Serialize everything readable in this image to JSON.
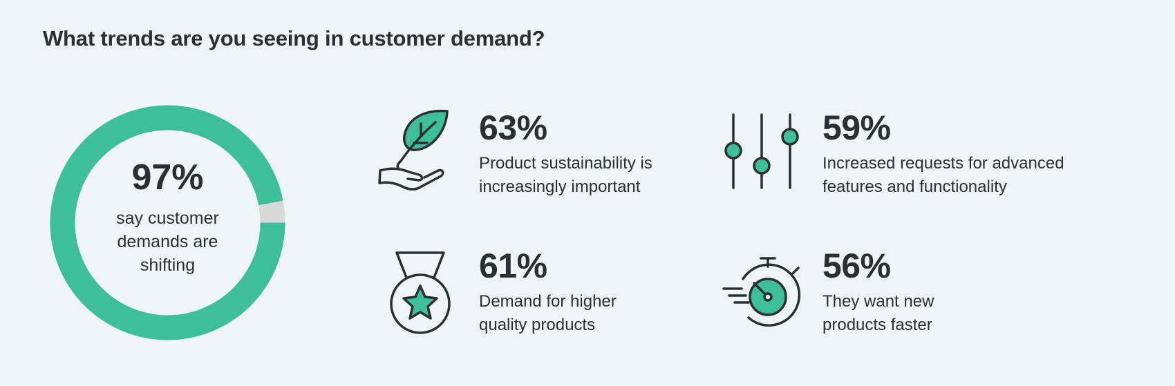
{
  "title": "What trends are you seeing in customer demand?",
  "colors": {
    "accent": "#3dbf97",
    "remainder": "#d9d9d9",
    "ink": "#2b2e33",
    "background": "#eff4f4"
  },
  "chart_data": {
    "type": "pie",
    "title": "What trends are you seeing in customer demand?",
    "center_value": "97%",
    "center_label": "say customer demands are shifting",
    "values": [
      97,
      3
    ]
  },
  "stats": [
    {
      "value": "63%",
      "label_line1": "Product sustainability is",
      "label_line2": "increasingly important",
      "icon": "leaf-in-hand-icon"
    },
    {
      "value": "59%",
      "label_line1": "Increased requests for advanced",
      "label_line2": "features and functionality",
      "icon": "sliders-icon"
    },
    {
      "value": "61%",
      "label_line1": "Demand for higher",
      "label_line2": "quality products",
      "icon": "medal-icon"
    },
    {
      "value": "56%",
      "label_line1": "They want new",
      "label_line2": "products faster",
      "icon": "stopwatch-icon"
    }
  ]
}
